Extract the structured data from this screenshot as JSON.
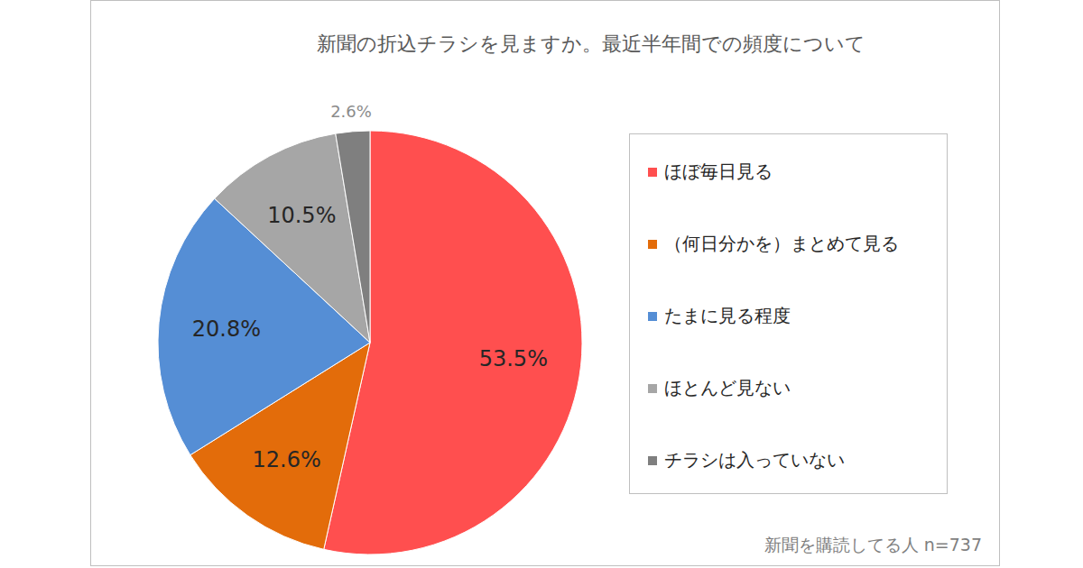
{
  "chart_data": {
    "type": "pie",
    "title": "新聞の折込チラシを見ますか。最近半年間での頻度について",
    "categories": [
      "ほぼ毎日見る",
      "（何日分かを）まとめて見る",
      "たまに見る程度",
      "ほとんど見ない",
      "チラシは入っていない"
    ],
    "values": [
      53.5,
      12.6,
      20.8,
      10.5,
      2.6
    ],
    "value_labels": [
      "53.5%",
      "12.6%",
      "20.8%",
      "10.5%",
      "2.6%"
    ],
    "colors": [
      "#ff4f4f",
      "#e36c0a",
      "#558ed5",
      "#a6a6a6",
      "#7f7f7f"
    ],
    "data_labels": true,
    "legend": "right",
    "annotation": "新聞を購読してる人 n=737"
  }
}
